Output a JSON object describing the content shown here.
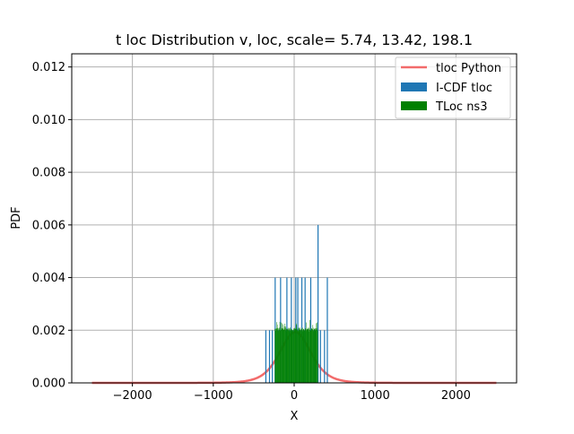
{
  "chart_data": {
    "type": "bar",
    "title": "t loc Distribution v, loc, scale= 5.74, 13.42, 198.1",
    "xlabel": "X",
    "ylabel": "PDF",
    "xlim": [
      -2750,
      2750
    ],
    "ylim": [
      0,
      0.0125
    ],
    "grid": true,
    "legend_position": "top-right",
    "x_ticks": [
      -2000,
      -1000,
      0,
      1000,
      2000
    ],
    "x_tick_labels": [
      "−2000",
      "−1000",
      "0",
      "1000",
      "2000"
    ],
    "y_ticks": [
      0,
      0.002,
      0.004,
      0.006,
      0.008,
      0.01,
      0.012
    ],
    "y_tick_labels": [
      "0.000",
      "0.002",
      "0.004",
      "0.006",
      "0.008",
      "0.010",
      "0.012"
    ],
    "series": [
      {
        "name": "tloc Python",
        "kind": "line",
        "color": "#f26b6b",
        "params": {
          "df": 5.74,
          "loc": 13.42,
          "scale": 198.1
        },
        "x_range": [
          -2500,
          2500
        ]
      },
      {
        "name": "I-CDF tloc",
        "kind": "bar",
        "color": "#1f77b4",
        "bins": [
          {
            "x": -350,
            "y": 0.002
          },
          {
            "x": -305,
            "y": 0.002
          },
          {
            "x": -270,
            "y": 0.002
          },
          {
            "x": -235,
            "y": 0.004
          },
          {
            "x": -200,
            "y": 0.002
          },
          {
            "x": -168,
            "y": 0.004
          },
          {
            "x": -140,
            "y": 0.002
          },
          {
            "x": -110,
            "y": 0.002
          },
          {
            "x": -90,
            "y": 0.004
          },
          {
            "x": -60,
            "y": 0.002
          },
          {
            "x": -35,
            "y": 0.004
          },
          {
            "x": -10,
            "y": 0.002
          },
          {
            "x": 20,
            "y": 0.004
          },
          {
            "x": 45,
            "y": 0.004
          },
          {
            "x": 70,
            "y": 0.002
          },
          {
            "x": 95,
            "y": 0.004
          },
          {
            "x": 118,
            "y": 0.002
          },
          {
            "x": 135,
            "y": 0.004
          },
          {
            "x": 170,
            "y": 0.002
          },
          {
            "x": 205,
            "y": 0.004
          },
          {
            "x": 235,
            "y": 0.002
          },
          {
            "x": 260,
            "y": 0.002
          },
          {
            "x": 295,
            "y": 0.006
          },
          {
            "x": 325,
            "y": 0.002
          },
          {
            "x": 375,
            "y": 0.002
          },
          {
            "x": 410,
            "y": 0.004
          }
        ]
      },
      {
        "name": "TLoc ns3",
        "kind": "bar",
        "color": "#008000",
        "x_range": [
          -240,
          290
        ],
        "y_level": 0.00195,
        "y_peak": 0.0024
      }
    ]
  }
}
